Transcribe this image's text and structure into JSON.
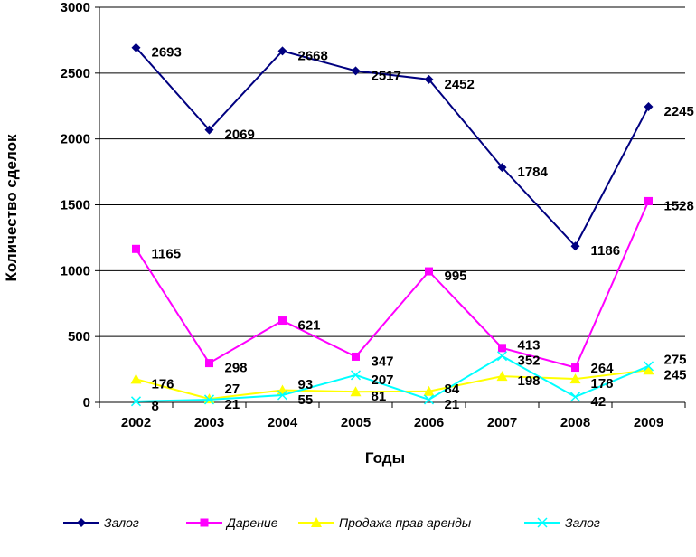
{
  "chart_data": {
    "type": "line",
    "title": "",
    "xlabel": "Годы",
    "ylabel": "Количество сделок",
    "categories": [
      "2002",
      "2003",
      "2004",
      "2005",
      "2006",
      "2007",
      "2008",
      "2009"
    ],
    "ylim": [
      0,
      3000
    ],
    "yticks": [
      0,
      500,
      1000,
      1500,
      2000,
      2500,
      3000
    ],
    "grid": true,
    "legend_position": "bottom",
    "series": [
      {
        "name": "Залог",
        "color": "#000080",
        "marker": "diamond",
        "values": [
          2693,
          2069,
          2668,
          2517,
          2452,
          1784,
          1186,
          2245
        ]
      },
      {
        "name": "Дарение",
        "color": "#FF00FF",
        "marker": "square",
        "values": [
          1165,
          298,
          621,
          347,
          995,
          413,
          264,
          1528
        ]
      },
      {
        "name": "Продажа  прав аренды",
        "color": "#FFFF00",
        "marker": "triangle",
        "values": [
          176,
          27,
          93,
          81,
          84,
          198,
          178,
          245
        ]
      },
      {
        "name": "Залог",
        "color": "#00FFFF",
        "marker": "x",
        "values": [
          8,
          21,
          55,
          207,
          21,
          352,
          42,
          275
        ]
      }
    ]
  }
}
